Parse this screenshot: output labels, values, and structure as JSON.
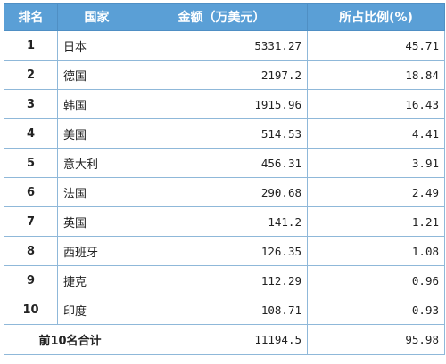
{
  "header": {
    "rank": "排名",
    "country": "国家",
    "amount": "金额（万美元）",
    "share": "所占比例(%)"
  },
  "rows": [
    {
      "rank": "1",
      "country": "日本",
      "amount": "5331.27",
      "share": "45.71"
    },
    {
      "rank": "2",
      "country": "德国",
      "amount": "2197.2",
      "share": "18.84"
    },
    {
      "rank": "3",
      "country": "韩国",
      "amount": "1915.96",
      "share": "16.43"
    },
    {
      "rank": "4",
      "country": "美国",
      "amount": "514.53",
      "share": "4.41"
    },
    {
      "rank": "5",
      "country": "意大利",
      "amount": "456.31",
      "share": "3.91"
    },
    {
      "rank": "6",
      "country": "法国",
      "amount": "290.68",
      "share": "2.49"
    },
    {
      "rank": "7",
      "country": "英国",
      "amount": "141.2",
      "share": "1.21"
    },
    {
      "rank": "8",
      "country": "西班牙",
      "amount": "126.35",
      "share": "1.08"
    },
    {
      "rank": "9",
      "country": "捷克",
      "amount": "112.29",
      "share": "0.96"
    },
    {
      "rank": "10",
      "country": "印度",
      "amount": "108.71",
      "share": "0.93"
    }
  ],
  "total": {
    "label": "前10名合计",
    "amount": "11194.5",
    "share": "95.98"
  },
  "colors": {
    "header_bg": "#5a9fd6",
    "header_text": "#ffffff",
    "border": "#8fb8d9"
  }
}
